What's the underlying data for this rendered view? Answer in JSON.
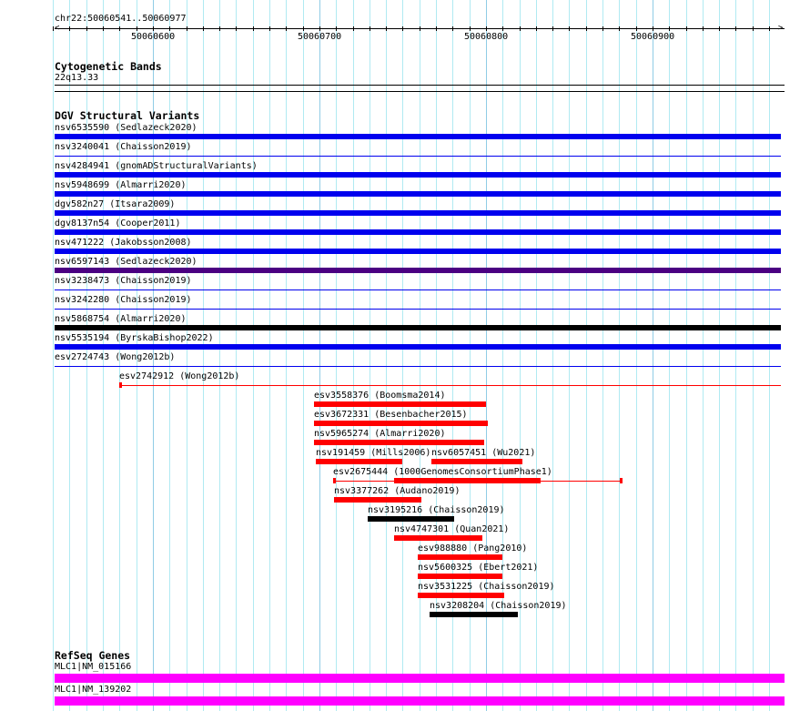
{
  "ruler": {
    "region": "chr22:50060541..50060977",
    "start": 50060541,
    "end": 50060977,
    "labels": [
      "50060600",
      "50060700",
      "50060800",
      "50060900"
    ]
  },
  "cytobands": {
    "title": "Cytogenetic Bands",
    "band": "22q13.33"
  },
  "dgv": {
    "title": "DGV Structural Variants",
    "colors": {
      "blue": "#0000ee",
      "purple": "#4b0082",
      "black": "#000000",
      "red": "#ff0000"
    },
    "rows": [
      [
        {
          "label": "nsv6535590 (Sedlazeck2020)",
          "color": "blue",
          "style": "thick",
          "start": 50060541,
          "end": 50060977
        }
      ],
      [
        {
          "label": "nsv3240041 (Chaisson2019)",
          "color": "blue",
          "style": "thin",
          "start": 50060541,
          "end": 50060977
        }
      ],
      [
        {
          "label": "nsv4284941 (gnomADStructuralVariants)",
          "color": "blue",
          "style": "thick",
          "start": 50060541,
          "end": 50060977
        }
      ],
      [
        {
          "label": "nsv5948699 (Almarri2020)",
          "color": "blue",
          "style": "thick",
          "start": 50060541,
          "end": 50060977
        }
      ],
      [
        {
          "label": "dgv582n27 (Itsara2009)",
          "color": "blue",
          "style": "thick",
          "start": 50060541,
          "end": 50060977
        }
      ],
      [
        {
          "label": "dgv8137n54 (Cooper2011)",
          "color": "blue",
          "style": "thick",
          "start": 50060541,
          "end": 50060977
        }
      ],
      [
        {
          "label": "nsv471222 (Jakobsson2008)",
          "color": "blue",
          "style": "thick",
          "start": 50060541,
          "end": 50060977
        }
      ],
      [
        {
          "label": "nsv6597143 (Sedlazeck2020)",
          "color": "purple",
          "style": "thick",
          "start": 50060541,
          "end": 50060977
        }
      ],
      [
        {
          "label": "nsv3238473 (Chaisson2019)",
          "color": "blue",
          "style": "thin",
          "start": 50060541,
          "end": 50060977
        }
      ],
      [
        {
          "label": "nsv3242280 (Chaisson2019)",
          "color": "blue",
          "style": "thin",
          "start": 50060541,
          "end": 50060977
        }
      ],
      [
        {
          "label": "nsv5868754 (Almarri2020)",
          "color": "black",
          "style": "thick",
          "start": 50060541,
          "end": 50060977
        }
      ],
      [
        {
          "label": "nsv5535194 (ByrskaBishop2022)",
          "color": "blue",
          "style": "thick",
          "start": 50060541,
          "end": 50060977
        }
      ],
      [
        {
          "label": "esv2724743 (Wong2012b)",
          "color": "blue",
          "style": "thin",
          "start": 50060541,
          "end": 50060977
        }
      ],
      [
        {
          "label": "esv2742912 (Wong2012b)",
          "color": "red",
          "style": "thin",
          "start": 50060580,
          "end": 50060977,
          "startBox": true
        }
      ],
      [
        {
          "label": "esv3558376 (Boomsma2014)",
          "color": "red",
          "style": "thick",
          "start": 50060697,
          "end": 50060800
        }
      ],
      [
        {
          "label": "esv3672331 (Besenbacher2015)",
          "color": "red",
          "style": "thick",
          "start": 50060697,
          "end": 50060801
        }
      ],
      [
        {
          "label": "nsv5965274 (Almarri2020)",
          "color": "red",
          "style": "thick",
          "start": 50060697,
          "end": 50060799
        }
      ],
      [
        {
          "label": "nsv191459 (Mills2006)",
          "color": "red",
          "style": "thick",
          "start": 50060698,
          "end": 50060750
        },
        {
          "label": "nsv6057451 (Wu2021)",
          "color": "red",
          "style": "thick",
          "start": 50060767,
          "end": 50060822
        }
      ],
      [
        {
          "label": "esv2675444 (1000GenomesConsortiumPhase1)",
          "color": "red",
          "style": "thin",
          "start": 50060708,
          "end": 50060882,
          "thickStart": 50060745,
          "thickEnd": 50060833,
          "startBox": true,
          "endBox": true
        }
      ],
      [
        {
          "label": "nsv3377262 (Audano2019)",
          "color": "red",
          "style": "thick",
          "start": 50060709,
          "end": 50060761
        }
      ],
      [
        {
          "label": "nsv3195216 (Chaisson2019)",
          "color": "black",
          "style": "thick",
          "start": 50060729,
          "end": 50060781
        }
      ],
      [
        {
          "label": "nsv4747301 (Quan2021)",
          "color": "red",
          "style": "thick",
          "start": 50060745,
          "end": 50060798
        }
      ],
      [
        {
          "label": "esv988880 (Pang2010)",
          "color": "red",
          "style": "thick",
          "start": 50060759,
          "end": 50060810
        }
      ],
      [
        {
          "label": "nsv5600325 (Ebert2021)",
          "color": "red",
          "style": "thick",
          "start": 50060759,
          "end": 50060810
        }
      ],
      [
        {
          "label": "nsv3531225 (Chaisson2019)",
          "color": "red",
          "style": "thick",
          "start": 50060759,
          "end": 50060811
        }
      ],
      [
        {
          "label": "nsv3208204 (Chaisson2019)",
          "color": "black",
          "style": "thick",
          "start": 50060766,
          "end": 50060819
        }
      ]
    ]
  },
  "refseq": {
    "title": "RefSeq Genes",
    "color": "#ff00ff",
    "genes": [
      {
        "label": "MLC1|NM_015166"
      },
      {
        "label": "MLC1|NM_139202"
      }
    ]
  }
}
